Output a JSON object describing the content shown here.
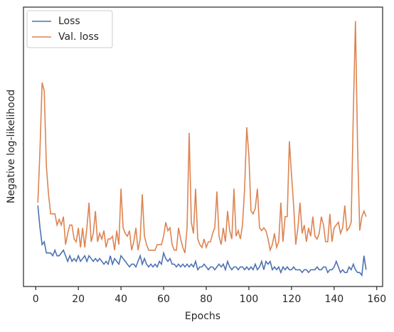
{
  "chart_data": {
    "type": "line",
    "x_label": "Epochs",
    "y_label": "Negative log-likelihood",
    "x": [
      1,
      2,
      3,
      4,
      5,
      6,
      7,
      8,
      9,
      10,
      11,
      12,
      13,
      14,
      15,
      16,
      17,
      18,
      19,
      20,
      21,
      22,
      23,
      24,
      25,
      26,
      27,
      28,
      29,
      30,
      31,
      32,
      33,
      34,
      35,
      36,
      37,
      38,
      39,
      40,
      41,
      42,
      43,
      44,
      45,
      46,
      47,
      48,
      49,
      50,
      51,
      52,
      53,
      54,
      55,
      56,
      57,
      58,
      59,
      60,
      61,
      62,
      63,
      64,
      65,
      66,
      67,
      68,
      69,
      70,
      71,
      72,
      73,
      74,
      75,
      76,
      77,
      78,
      79,
      80,
      81,
      82,
      83,
      84,
      85,
      86,
      87,
      88,
      89,
      90,
      91,
      92,
      93,
      94,
      95,
      96,
      97,
      98,
      99,
      100,
      101,
      102,
      103,
      104,
      105,
      106,
      107,
      108,
      109,
      110,
      111,
      112,
      113,
      114,
      115,
      116,
      117,
      118,
      119,
      120,
      121,
      122,
      123,
      124,
      125,
      126,
      127,
      128,
      129,
      130,
      131,
      132,
      133,
      134,
      135,
      136,
      137,
      138,
      139,
      140,
      141,
      142,
      143,
      144,
      145,
      146,
      147,
      148,
      149,
      150,
      151,
      152,
      153,
      154,
      155
    ],
    "series": [
      {
        "name": "Loss",
        "color": "#4c72b0",
        "values": [
          29,
          21,
          15,
          16,
          12,
          12,
          12,
          11,
          13,
          11,
          11,
          12,
          13,
          11,
          9,
          11,
          9,
          10,
          9,
          11,
          9,
          10,
          11,
          9,
          11,
          10,
          9,
          10,
          9,
          10,
          9,
          8,
          9,
          8,
          11,
          8,
          10,
          9,
          8,
          11,
          10,
          9,
          8,
          7,
          8,
          8,
          7,
          9,
          11,
          8,
          10,
          8,
          7,
          8,
          7,
          8,
          7,
          9,
          8,
          12,
          10,
          9,
          10,
          8,
          8,
          7,
          8,
          7,
          8,
          7,
          8,
          7,
          8,
          7,
          9,
          6,
          7,
          7,
          8,
          7,
          6,
          7,
          7,
          6,
          7,
          8,
          7,
          8,
          6,
          9,
          7,
          6,
          7,
          7,
          6,
          7,
          7,
          6,
          7,
          6,
          7,
          6,
          8,
          6,
          7,
          9,
          6,
          9,
          8,
          9,
          6,
          7,
          6,
          7,
          5,
          7,
          6,
          7,
          6,
          6,
          7,
          6,
          6,
          6,
          5,
          6,
          6,
          5,
          6,
          6,
          6,
          7,
          6,
          6,
          7,
          7,
          5,
          6,
          6,
          7,
          9,
          7,
          5,
          6,
          5,
          5,
          7,
          6,
          8,
          6,
          5,
          5,
          4,
          11,
          6
        ]
      },
      {
        "name": "Val. loss",
        "color": "#dd8452",
        "values": [
          30,
          49,
          73,
          70,
          43,
          33,
          26,
          26,
          26,
          22,
          24,
          22,
          25,
          15,
          19,
          22,
          22,
          17,
          16,
          21,
          14,
          21,
          14,
          21,
          30,
          16,
          19,
          27,
          16,
          19,
          17,
          20,
          14,
          17,
          17,
          18,
          13,
          20,
          15,
          35,
          21,
          19,
          18,
          20,
          13,
          16,
          21,
          13,
          17,
          33,
          18,
          15,
          13,
          13,
          13,
          13,
          15,
          15,
          15,
          18,
          23,
          20,
          21,
          15,
          13,
          13,
          21,
          17,
          14,
          12,
          21,
          55,
          23,
          19,
          35,
          17,
          15,
          14,
          17,
          14,
          16,
          16,
          19,
          21,
          34,
          18,
          15,
          21,
          16,
          27,
          20,
          17,
          35,
          18,
          20,
          17,
          22,
          35,
          57,
          47,
          27,
          26,
          28,
          35,
          21,
          20,
          21,
          20,
          17,
          13,
          15,
          19,
          14,
          16,
          30,
          16,
          25,
          25,
          52,
          40,
          29,
          15,
          21,
          30,
          19,
          22,
          16,
          21,
          18,
          25,
          18,
          17,
          19,
          25,
          22,
          16,
          16,
          26,
          16,
          21,
          22,
          23,
          19,
          21,
          29,
          20,
          21,
          23,
          62,
          95,
          50,
          20,
          25,
          27,
          25
        ]
      }
    ],
    "xlim": [
      -5.75,
      162.75
    ],
    "xticks": [
      0,
      20,
      40,
      60,
      80,
      100,
      120,
      140,
      160
    ],
    "ylim": [
      0,
      100
    ],
    "legend": "upper left"
  }
}
